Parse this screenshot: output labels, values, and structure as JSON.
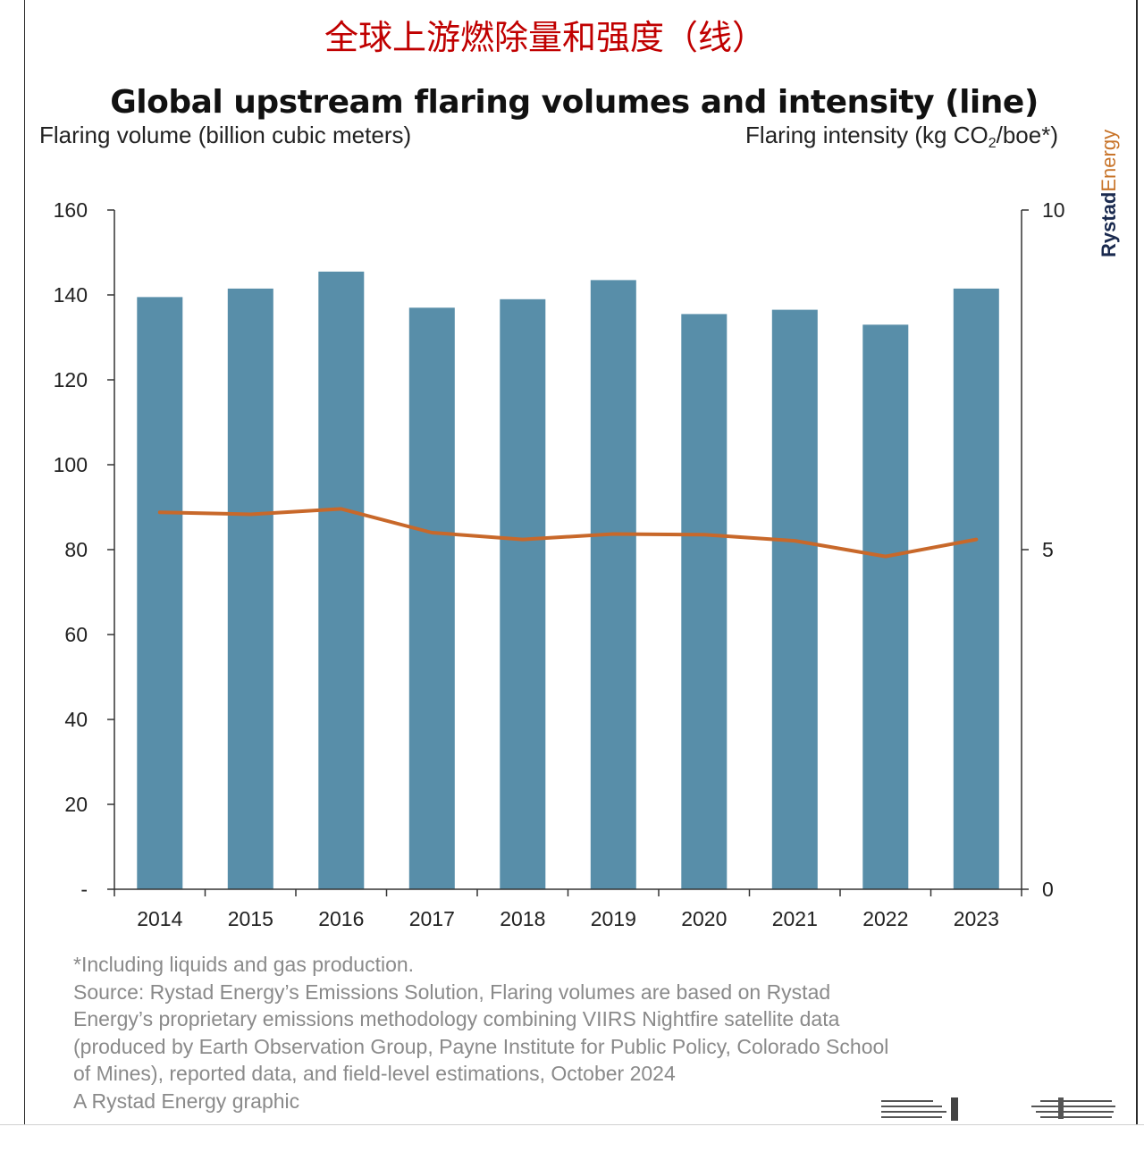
{
  "header_cn": "全球上游燃除量和强度（线）",
  "chart_data": {
    "type": "bar+line",
    "title": "Global upstream flaring volumes and intensity (line)",
    "y_left_label": "Flaring volume (billion cubic meters)",
    "y_right_label_prefix": "Flaring intensity (kg CO",
    "y_right_label_sub": "2",
    "y_right_label_suffix": "/boe*)",
    "categories": [
      "2014",
      "2015",
      "2016",
      "2017",
      "2018",
      "2019",
      "2020",
      "2021",
      "2022",
      "2023"
    ],
    "series": [
      {
        "kind": "bar",
        "axis": "left",
        "color": "#588ea9",
        "values": [
          139.5,
          141.5,
          145.5,
          137,
          139,
          143.5,
          135.5,
          136.5,
          133,
          141.5
        ]
      },
      {
        "kind": "line",
        "axis": "right",
        "color": "#c8682a",
        "values": [
          5.55,
          5.52,
          5.6,
          5.25,
          5.15,
          5.23,
          5.22,
          5.13,
          4.9,
          5.15
        ]
      }
    ],
    "y_left_lim": [
      0,
      160
    ],
    "y_left_ticks": [
      "-",
      "20",
      "40",
      "60",
      "80",
      "100",
      "120",
      "140",
      "160"
    ],
    "y_left_tick_values": [
      0,
      20,
      40,
      60,
      80,
      100,
      120,
      140,
      160
    ],
    "y_right_lim": [
      0,
      10
    ],
    "y_right_ticks": [
      "0",
      "5",
      "10"
    ],
    "y_right_tick_values": [
      0,
      5,
      10
    ],
    "grid": false
  },
  "brand": {
    "part1": "Rystad",
    "part2": "Energy"
  },
  "notes": [
    "*Including liquids and gas production.",
    "Source: Rystad Energy’s Emissions Solution, Flaring volumes are based on Rystad",
    "Energy’s proprietary emissions methodology combining VIIRS Nightfire satellite data",
    "(produced by Earth Observation Group, Payne Institute for Public Policy, Colorado School",
    "of Mines), reported data, and field-level estimations, October 2024",
    "A Rystad Energy graphic"
  ]
}
